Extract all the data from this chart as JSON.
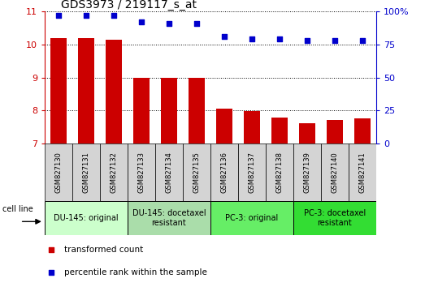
{
  "title": "GDS3973 / 219117_s_at",
  "samples": [
    "GSM827130",
    "GSM827131",
    "GSM827132",
    "GSM827133",
    "GSM827134",
    "GSM827135",
    "GSM827136",
    "GSM827137",
    "GSM827138",
    "GSM827139",
    "GSM827140",
    "GSM827141"
  ],
  "bar_values": [
    10.2,
    10.2,
    10.15,
    9.0,
    9.0,
    9.0,
    8.05,
    7.98,
    7.78,
    7.62,
    7.72,
    7.75
  ],
  "dot_values": [
    97,
    97,
    97,
    92,
    91,
    91,
    81,
    79,
    79,
    78,
    78,
    78
  ],
  "bar_color": "#cc0000",
  "dot_color": "#0000cc",
  "ylim_left": [
    7,
    11
  ],
  "ylim_right": [
    0,
    100
  ],
  "yticks_left": [
    7,
    8,
    9,
    10,
    11
  ],
  "yticks_right": [
    0,
    25,
    50,
    75,
    100
  ],
  "ytick_labels_right": [
    "0",
    "25",
    "50",
    "75",
    "100%"
  ],
  "groups": [
    {
      "label": "DU-145: original",
      "start": 0,
      "end": 3,
      "color": "#ccffcc"
    },
    {
      "label": "DU-145: docetaxel\nresistant",
      "start": 3,
      "end": 6,
      "color": "#aaddaa"
    },
    {
      "label": "PC-3: original",
      "start": 6,
      "end": 9,
      "color": "#66ee66"
    },
    {
      "label": "PC-3: docetaxel\nresistant",
      "start": 9,
      "end": 12,
      "color": "#33dd33"
    }
  ],
  "xtick_bg_color": "#d4d4d4",
  "cell_line_label": "cell line",
  "legend_bar_label": "transformed count",
  "legend_dot_label": "percentile rank within the sample",
  "title_fontsize": 10,
  "tick_fontsize": 8,
  "xtick_fontsize": 6,
  "group_fontsize": 7,
  "legend_fontsize": 7.5
}
